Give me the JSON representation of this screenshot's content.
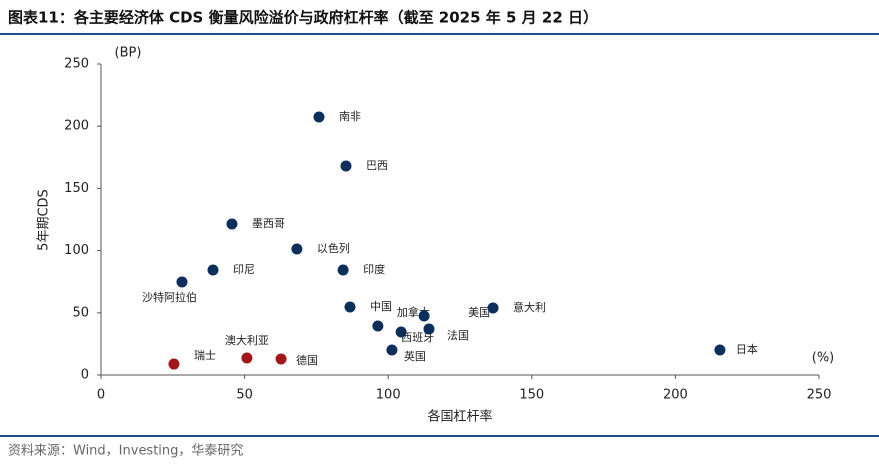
{
  "chart_data": {
    "type": "scatter",
    "title": "图表11：各主要经济体 CDS 衡量风险溢价与政府杠杆率（截至 2025 年 5 月 22 日）",
    "y_label": "5年期CDS",
    "y_unit": "(BP)",
    "x_label": "各国杠杆率",
    "x_unit": "(%)",
    "source": "资料来源：Wind，Investing，华泰研究",
    "xlim": [
      0,
      250
    ],
    "xticks": [
      0,
      50,
      100,
      150,
      200,
      250
    ],
    "ylim": [
      0,
      250
    ],
    "yticks": [
      0,
      50,
      100,
      150,
      200,
      250
    ],
    "grid": false,
    "points": [
      {
        "label": "南非",
        "x": 75.9,
        "y": 207.4,
        "color": "#0d2f5c"
      },
      {
        "label": "巴西",
        "x": 85.3,
        "y": 168,
        "color": "#0d2f5c"
      },
      {
        "label": "墨西哥",
        "x": 45.6,
        "y": 121.4,
        "color": "#0d2f5c"
      },
      {
        "label": "以色列",
        "x": 68.2,
        "y": 101.3,
        "color": "#0d2f5c"
      },
      {
        "label": "印尼",
        "x": 39,
        "y": 84.4,
        "color": "#0d2f5c"
      },
      {
        "label": "印度",
        "x": 84.3,
        "y": 84.4,
        "color": "#0d2f5c"
      },
      {
        "label": "沙特阿拉伯",
        "x": 28.2,
        "y": 74.8,
        "color": "#0d2f5c"
      },
      {
        "label": "中国",
        "x": 86.7,
        "y": 54.7,
        "color": "#0d2f5c"
      },
      {
        "label": "加拿大",
        "x": 96.4,
        "y": 39.4,
        "color": "#0d2f5c"
      },
      {
        "label": "美国",
        "x": 112.5,
        "y": 47.4,
        "color": "#0d2f5c"
      },
      {
        "label": "西班牙",
        "x": 104.5,
        "y": 34.6,
        "color": "#0d2f5c"
      },
      {
        "label": "法国",
        "x": 114.2,
        "y": 37,
        "color": "#0d2f5c"
      },
      {
        "label": "英国",
        "x": 101.3,
        "y": 20.1,
        "color": "#0d2f5c"
      },
      {
        "label": "意大利",
        "x": 136.5,
        "y": 53.9,
        "color": "#0d2f5c"
      },
      {
        "label": "日本",
        "x": 215.5,
        "y": 20.1,
        "color": "#0d2f5c"
      },
      {
        "label": "瑞士",
        "x": 25.4,
        "y": 8.8,
        "color": "#a3161a"
      },
      {
        "label": "澳大利亚",
        "x": 50.8,
        "y": 13.7,
        "color": "#a3161a"
      },
      {
        "label": "德国",
        "x": 62.7,
        "y": 12.9,
        "color": "#a3161a"
      }
    ]
  }
}
